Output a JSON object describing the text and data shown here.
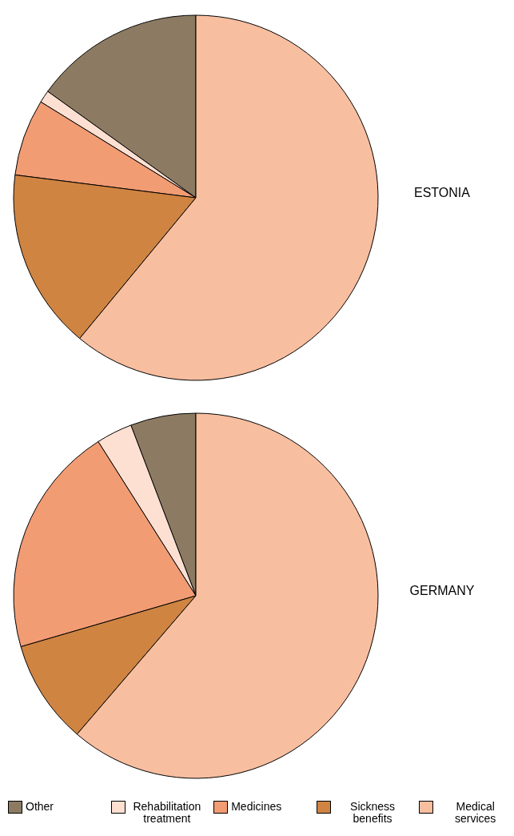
{
  "chart_data": {
    "type": "pie",
    "categories": [
      "Other",
      "Rehabilitation treatment",
      "Medicines",
      "Sickness benefits",
      "Medical services"
    ],
    "colors": [
      "#8c7b62",
      "#fde0d2",
      "#f29c74",
      "#cf8442",
      "#f8bea0"
    ],
    "legend": "bottom",
    "series": [
      {
        "name": "ESTONIA",
        "values": [
          15.1,
          1.1,
          6.8,
          16,
          61
        ]
      },
      {
        "name": "GERMANY",
        "values": [
          5.8,
          3.2,
          20.5,
          9.2,
          61.3
        ]
      }
    ]
  }
}
